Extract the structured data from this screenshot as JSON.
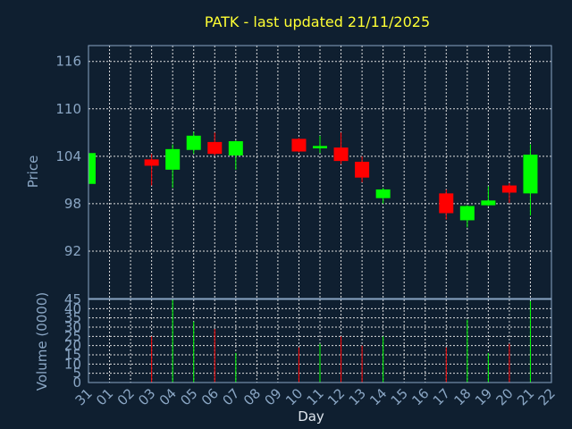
{
  "chart_data": {
    "type": "candlestick",
    "title": "PATK - last updated 21/11/2025",
    "xlabel": "Day",
    "x_ticks": [
      "31",
      "01",
      "02",
      "03",
      "04",
      "05",
      "06",
      "07",
      "08",
      "09",
      "10",
      "11",
      "12",
      "13",
      "14",
      "15",
      "16",
      "17",
      "18",
      "19",
      "20",
      "21",
      "22"
    ],
    "price_panel": {
      "ylabel": "Price",
      "ylim": [
        86,
        118
      ],
      "y_ticks": [
        92,
        98,
        104,
        110,
        116
      ],
      "grid": true,
      "candles": [
        {
          "day": "31",
          "open": 100.5,
          "high": 104.6,
          "low": 100.3,
          "close": 104.4
        },
        {
          "day": "03",
          "open": 103.6,
          "high": 104.3,
          "low": 100.3,
          "close": 102.8
        },
        {
          "day": "04",
          "open": 102.3,
          "high": 105.5,
          "low": 100.0,
          "close": 104.9
        },
        {
          "day": "05",
          "open": 104.8,
          "high": 107.1,
          "low": 104.3,
          "close": 106.6
        },
        {
          "day": "06",
          "open": 105.8,
          "high": 107.0,
          "low": 104.1,
          "close": 104.3
        },
        {
          "day": "07",
          "open": 104.1,
          "high": 106.0,
          "low": 102.3,
          "close": 105.9
        },
        {
          "day": "10",
          "open": 106.2,
          "high": 106.3,
          "low": 104.5,
          "close": 104.6
        },
        {
          "day": "11",
          "open": 105.0,
          "high": 106.6,
          "low": 104.4,
          "close": 105.3
        },
        {
          "day": "12",
          "open": 105.1,
          "high": 107.0,
          "low": 103.0,
          "close": 103.4
        },
        {
          "day": "13",
          "open": 103.3,
          "high": 104.0,
          "low": 100.7,
          "close": 101.3
        },
        {
          "day": "14",
          "open": 98.7,
          "high": 100.0,
          "low": 98.0,
          "close": 99.8
        },
        {
          "day": "17",
          "open": 99.3,
          "high": 99.8,
          "low": 96.0,
          "close": 96.8
        },
        {
          "day": "18",
          "open": 95.9,
          "high": 97.8,
          "low": 95.0,
          "close": 97.7
        },
        {
          "day": "19",
          "open": 97.8,
          "high": 100.2,
          "low": 97.7,
          "close": 98.4
        },
        {
          "day": "20",
          "open": 100.3,
          "high": 100.6,
          "low": 98.1,
          "close": 99.4
        },
        {
          "day": "21",
          "open": 99.3,
          "high": 105.5,
          "low": 96.5,
          "close": 104.2
        }
      ]
    },
    "volume_panel": {
      "ylabel": "Volume (0000)",
      "ylim": [
        0,
        45
      ],
      "y_ticks": [
        0,
        5,
        10,
        15,
        20,
        25,
        30,
        35,
        40,
        45
      ],
      "grid": true,
      "bars": [
        {
          "day": "03",
          "volume": 25,
          "direction": "down"
        },
        {
          "day": "04",
          "volume": 45,
          "direction": "up"
        },
        {
          "day": "05",
          "volume": 33,
          "direction": "up"
        },
        {
          "day": "06",
          "volume": 29,
          "direction": "down"
        },
        {
          "day": "07",
          "volume": 16,
          "direction": "up"
        },
        {
          "day": "10",
          "volume": 19,
          "direction": "down"
        },
        {
          "day": "11",
          "volume": 21,
          "direction": "up"
        },
        {
          "day": "12",
          "volume": 25,
          "direction": "down"
        },
        {
          "day": "13",
          "volume": 20,
          "direction": "down"
        },
        {
          "day": "14",
          "volume": 25,
          "direction": "up"
        },
        {
          "day": "17",
          "volume": 19,
          "direction": "down"
        },
        {
          "day": "18",
          "volume": 34,
          "direction": "up"
        },
        {
          "day": "19",
          "volume": 16,
          "direction": "up"
        },
        {
          "day": "20",
          "volume": 21,
          "direction": "down"
        },
        {
          "day": "21",
          "volume": 44,
          "direction": "up"
        }
      ]
    },
    "colors": {
      "background": "#0f1f30",
      "up": "#00ff00",
      "down": "#ff0000",
      "grid": "#dddddd",
      "axis_text": "#8aa6c4",
      "title": "#ffff33"
    }
  }
}
